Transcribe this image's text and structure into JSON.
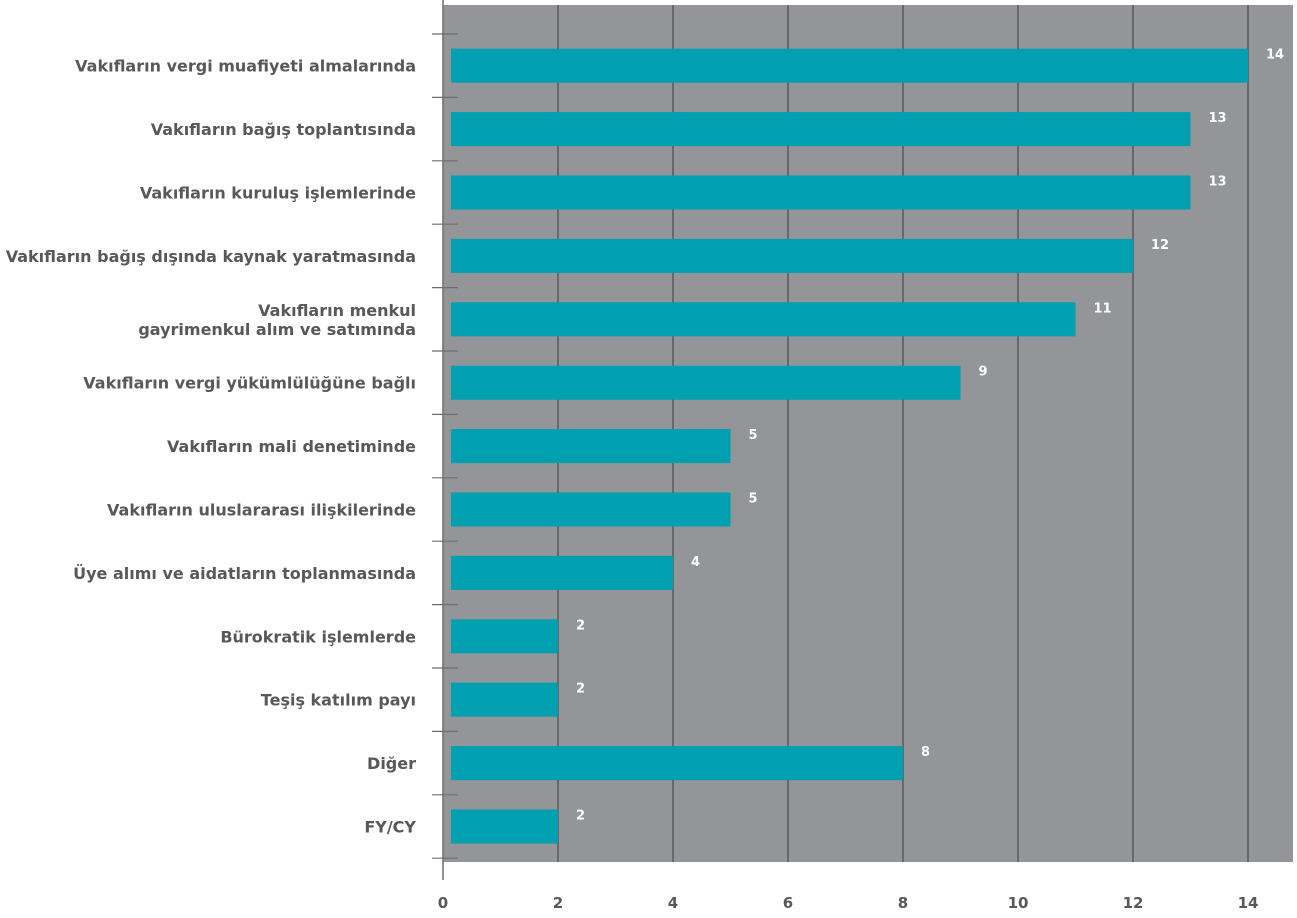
{
  "chart_data": {
    "type": "bar",
    "orientation": "horizontal",
    "categories": [
      [
        "Vakıfların vergi muafiyeti almalarında"
      ],
      [
        "Vakıfların bağış toplantısında"
      ],
      [
        "Vakıfların kuruluş işlemlerinde"
      ],
      [
        "Vakıfların bağış dışında kaynak yaratmasında"
      ],
      [
        "Vakıfların menkul",
        "gayrimenkul alım ve satımında"
      ],
      [
        "Vakıfların  vergi yükümlülüğüne bağlı"
      ],
      [
        "Vakıfların mali denetiminde"
      ],
      [
        "Vakıfların uluslararası ilişkilerinde"
      ],
      [
        "Üye alımı ve aidatların toplanmasında"
      ],
      [
        "Bürokratik işlemlerde"
      ],
      [
        "Teşiş katılım payı"
      ],
      [
        "Diğer"
      ],
      [
        "FY/CY"
      ]
    ],
    "values": [
      14,
      13,
      13,
      12,
      11,
      9,
      5,
      5,
      4,
      2,
      2,
      8,
      2
    ],
    "value_labels": [
      "14",
      "13",
      "13",
      "12",
      "11",
      "9",
      "5",
      "5",
      "4",
      "2",
      "2",
      "8",
      "2"
    ],
    "xticks": [
      "0",
      "2",
      "4",
      "6",
      "8",
      "10",
      "12",
      "14"
    ],
    "xtick_values": [
      0,
      2,
      4,
      6,
      8,
      10,
      12,
      14
    ],
    "xlim": [
      0,
      14.8
    ],
    "grid": "vertical",
    "colors": {
      "bar": "#00a0b0",
      "plot_background": "#939598",
      "gridline": "#3c3c3e",
      "text": "#58585a",
      "value_text": "#ffffff"
    }
  }
}
